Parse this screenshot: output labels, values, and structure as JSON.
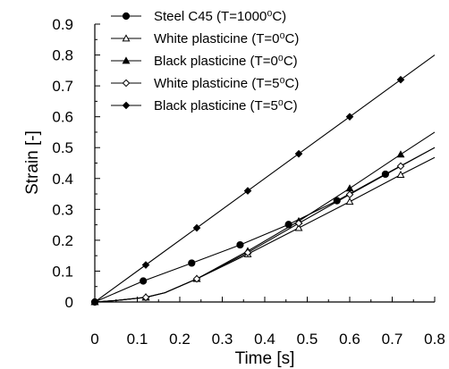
{
  "chart_data": {
    "type": "line",
    "xlabel": "Time [s]",
    "ylabel": "Strain  [-]",
    "xlim": [
      0,
      0.8
    ],
    "ylim": [
      0,
      0.9
    ],
    "x_ticks": [
      "0",
      "0.1",
      "0.2",
      "0.3",
      "0.4",
      "0.5",
      "0.6",
      "0.7",
      "0.8"
    ],
    "y_ticks": [
      "0",
      "0.1",
      "0.2",
      "0.3",
      "0.4",
      "0.5",
      "0.6",
      "0.7",
      "0.8",
      "0.9"
    ],
    "grid": false,
    "legend_position": "top-left",
    "series": [
      {
        "name": "Steel C45 (T=1000⁰C)",
        "marker": "filled-circle",
        "color": "#000000",
        "points": [
          [
            0,
            0
          ],
          [
            0.114,
            0.068
          ],
          [
            0.228,
            0.126
          ],
          [
            0.342,
            0.185
          ],
          [
            0.456,
            0.251
          ],
          [
            0.57,
            0.328
          ],
          [
            0.684,
            0.414
          ],
          [
            0.8,
            0.5
          ]
        ]
      },
      {
        "name": "White plasticine (T=0⁰C)",
        "marker": "open-triangle",
        "color": "#000000",
        "points": [
          [
            0,
            0
          ],
          [
            0.05,
            0.005
          ],
          [
            0.12,
            0.015
          ],
          [
            0.165,
            0.03
          ],
          [
            0.24,
            0.075
          ],
          [
            0.36,
            0.155
          ],
          [
            0.48,
            0.24
          ],
          [
            0.6,
            0.325
          ],
          [
            0.72,
            0.412
          ],
          [
            0.8,
            0.468
          ]
        ]
      },
      {
        "name": "Black plasticine (T=0⁰C)",
        "marker": "filled-triangle",
        "color": "#000000",
        "points": [
          [
            0,
            0
          ],
          [
            0.05,
            0.005
          ],
          [
            0.12,
            0.015
          ],
          [
            0.165,
            0.03
          ],
          [
            0.24,
            0.075
          ],
          [
            0.36,
            0.165
          ],
          [
            0.48,
            0.262
          ],
          [
            0.6,
            0.368
          ],
          [
            0.72,
            0.478
          ],
          [
            0.8,
            0.55
          ]
        ]
      },
      {
        "name": "White plasticine (T=5⁰C)",
        "marker": "open-diamond",
        "color": "#000000",
        "points": [
          [
            0,
            0
          ],
          [
            0.05,
            0.005
          ],
          [
            0.12,
            0.015
          ],
          [
            0.165,
            0.03
          ],
          [
            0.24,
            0.075
          ],
          [
            0.36,
            0.16
          ],
          [
            0.48,
            0.255
          ],
          [
            0.6,
            0.348
          ],
          [
            0.72,
            0.44
          ],
          [
            0.8,
            0.5
          ]
        ]
      },
      {
        "name": "Black plasticine (T=5⁰C)",
        "marker": "filled-diamond",
        "color": "#000000",
        "points": [
          [
            0,
            0
          ],
          [
            0.12,
            0.12
          ],
          [
            0.24,
            0.24
          ],
          [
            0.36,
            0.36
          ],
          [
            0.48,
            0.48
          ],
          [
            0.6,
            0.6
          ],
          [
            0.72,
            0.72
          ],
          [
            0.8,
            0.8
          ]
        ]
      }
    ]
  }
}
